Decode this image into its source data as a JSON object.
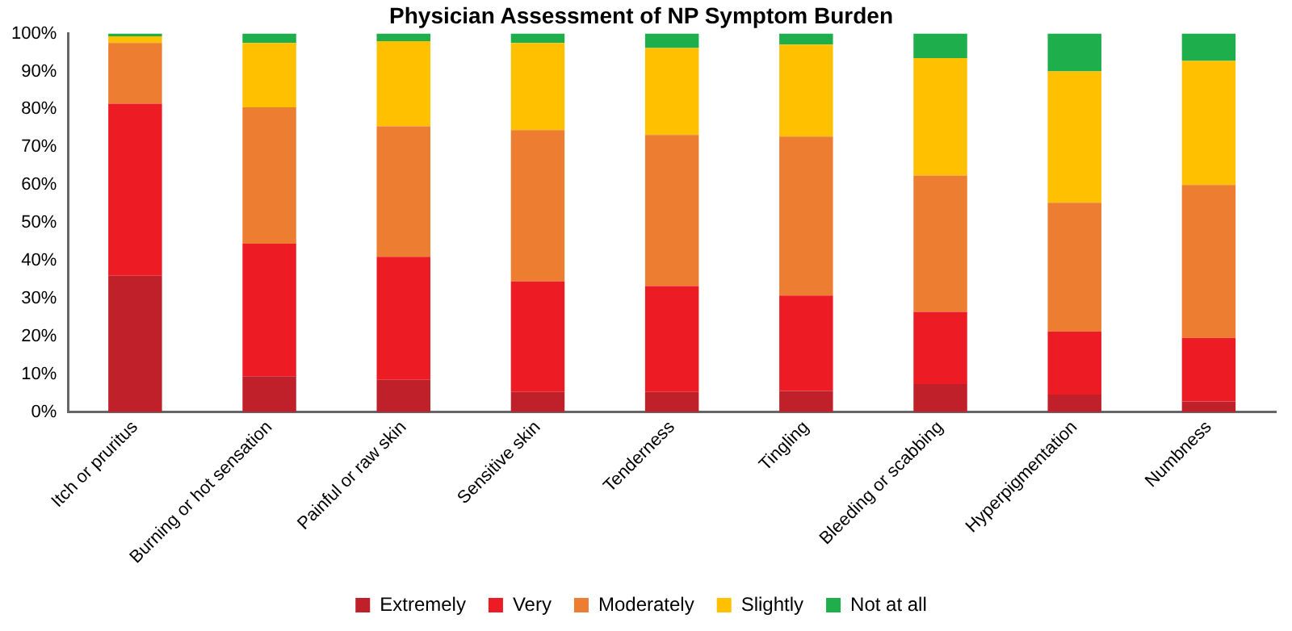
{
  "chart_data": {
    "type": "bar",
    "title": "Physician Assessment of NP Symptom Burden",
    "stacked": true,
    "legend": "bottom",
    "grid": false,
    "categories": [
      "Itch or pruritus",
      "Burning or hot sensation",
      "Painful or raw skin",
      "Sensitive skin",
      "Tenderness",
      "Tingling",
      "Bleeding or scabbing",
      "Hyperpigmentation",
      "Numbness"
    ],
    "series": [
      {
        "name": "Extremely",
        "color": "#c0202a",
        "values": [
          36,
          9.5,
          8.5,
          5.3,
          5.3,
          5.6,
          7.4,
          4.6,
          2.8
        ]
      },
      {
        "name": "Very",
        "color": "#ed1c24",
        "values": [
          45.5,
          35,
          32.5,
          29.2,
          28,
          25.2,
          19.1,
          16.7,
          16.8
        ]
      },
      {
        "name": "Moderately",
        "color": "#ed7d31",
        "values": [
          16,
          36,
          34.5,
          40,
          39.9,
          42,
          36,
          34,
          40.4
        ]
      },
      {
        "name": "Slightly",
        "color": "#ffc000",
        "values": [
          1.8,
          17,
          22.5,
          23,
          23,
          24.3,
          31,
          34.7,
          32.8
        ]
      },
      {
        "name": "Not at all",
        "color": "#1fae4c",
        "values": [
          0.7,
          2.5,
          2,
          2.5,
          3.8,
          2.9,
          6.5,
          10,
          7.2
        ]
      }
    ],
    "ylim": [
      0,
      100
    ],
    "yticks": [
      {
        "value": 0,
        "label": "0%"
      },
      {
        "value": 10,
        "label": "10%"
      },
      {
        "value": 20,
        "label": "20%"
      },
      {
        "value": 30,
        "label": "30%"
      },
      {
        "value": 40,
        "label": "40%"
      },
      {
        "value": 50,
        "label": "50%"
      },
      {
        "value": 60,
        "label": "60%"
      },
      {
        "value": 70,
        "label": "70%"
      },
      {
        "value": 80,
        "label": "80%"
      },
      {
        "value": 90,
        "label": "90%"
      },
      {
        "value": 100,
        "label": "100%"
      }
    ]
  }
}
